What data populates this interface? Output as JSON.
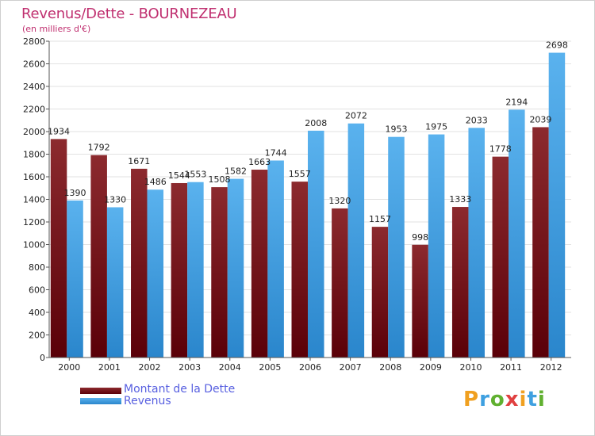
{
  "header": {
    "title": "Revenus/Dette - BOURNEZEAU",
    "subtitle": "(en milliers d'€)"
  },
  "logo": {
    "text": "Proxiti",
    "letters": [
      "P",
      "r",
      "o",
      "x",
      "i",
      "t",
      "i"
    ],
    "colors": [
      "#f0a020",
      "#3fa0e0",
      "#60b030",
      "#e04040",
      "#f0a020",
      "#3fa0e0",
      "#60b030"
    ]
  },
  "chart_data": {
    "type": "bar",
    "title": "Revenus/Dette - BOURNEZEAU",
    "subtitle": "(en milliers d'€)",
    "xlabel": "",
    "ylabel": "",
    "ylim": [
      0,
      2800
    ],
    "yticks": [
      0,
      200,
      400,
      600,
      800,
      1000,
      1200,
      1400,
      1600,
      1800,
      2000,
      2200,
      2400,
      2600,
      2800
    ],
    "grid": true,
    "legend_position": "bottom-left",
    "categories": [
      "2000",
      "2001",
      "2002",
      "2003",
      "2004",
      "2005",
      "2006",
      "2007",
      "2008",
      "2009",
      "2010",
      "2011",
      "2012"
    ],
    "series": [
      {
        "name": "Montant de la Dette",
        "color": "#7a1418",
        "values": [
          1934,
          1792,
          1671,
          1544,
          1508,
          1663,
          1557,
          1320,
          1157,
          998,
          1333,
          1778,
          2039
        ]
      },
      {
        "name": "Revenus",
        "color": "#3b9ee0",
        "values": [
          1390,
          1330,
          1486,
          1553,
          1582,
          1744,
          2008,
          2072,
          1953,
          1975,
          2033,
          2194,
          2698
        ]
      }
    ]
  }
}
